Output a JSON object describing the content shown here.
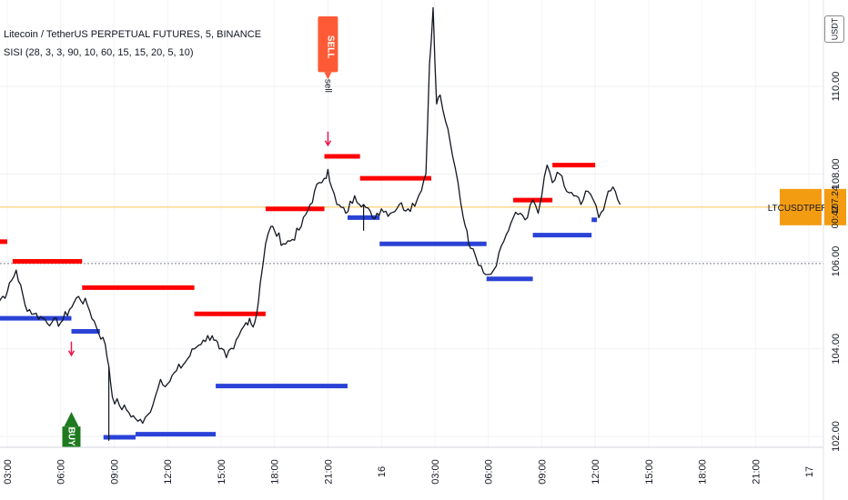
{
  "legend": {
    "symbol_title": "Litecoin / TetherUS PERPETUAL FUTURES, 5, BINANCE",
    "indicator": "SISI (28, 3, 3, 90, 10, 60, 15, 15, 20, 5, 10)"
  },
  "unit_button": "USDT",
  "chart_data": {
    "type": "candlestick",
    "symbol_badge": "LTCUSDTPERP",
    "last_price": "107.24",
    "countdown": "00:42",
    "colors": {
      "price": "#131722",
      "sell_level": "#ff0000",
      "buy_level": "#2a42d6",
      "last_price_line": "#ffcc66",
      "badge": "#f39c12",
      "sell_marker": "#ff5a36",
      "buy_marker": "#1f7a1f",
      "arrow": "#e8174e"
    },
    "y_axis": {
      "range": [
        101.8,
        112.0
      ],
      "ticks": [
        "102.00",
        "104.00",
        "106.00",
        "108.00",
        "110.00"
      ]
    },
    "x_axis": {
      "ticks": [
        "03:00",
        "06:00",
        "09:00",
        "12:00",
        "15:00",
        "18:00",
        "21:00",
        "16",
        "03:00",
        "06:00",
        "09:00",
        "12:00",
        "15:00",
        "18:00",
        "21:00",
        "17"
      ],
      "hours_from_first_tick": [
        0,
        3,
        6,
        9,
        12,
        15,
        18,
        21,
        24,
        27,
        30,
        33,
        36,
        39,
        42,
        45
      ]
    },
    "reference_lines": [
      {
        "y": 107.24,
        "style": "solid",
        "color": "#ffcc66"
      },
      {
        "y": 105.95,
        "style": "dotted",
        "color": "#9598a1"
      }
    ],
    "price_path": {
      "hours": [
        -1,
        0,
        0.5,
        1,
        1.5,
        2,
        2.5,
        3,
        3.5,
        4,
        4.5,
        5,
        5.5,
        5.7,
        5.9,
        6.3,
        6.7,
        7.2,
        7.6,
        7.9,
        8.3,
        8.6,
        9,
        9.5,
        10,
        10.5,
        11,
        11.5,
        11.7,
        11.9,
        12.3,
        12.7,
        13,
        13.4,
        13.6,
        13.8,
        14,
        14.2,
        14.5,
        14.8,
        15,
        15.5,
        16,
        16.5,
        17,
        17.5,
        17.8,
        18,
        18.2,
        18.5,
        19,
        19.5,
        20,
        20.5,
        21,
        21.5,
        22,
        22.5,
        23,
        23.5,
        23.7,
        23.9,
        24,
        24.1,
        24.3,
        24.6,
        25,
        25.3,
        25.6,
        25.8,
        26,
        26.3,
        26.6,
        27,
        27.3,
        27.6,
        28,
        28.4,
        28.8,
        29.2,
        29.5,
        29.8,
        30,
        30.3,
        30.6,
        31,
        31.4,
        31.8,
        32.2,
        32.6,
        32.9,
        33.2,
        33.6,
        34,
        34.4
      ],
      "values": [
        104.9,
        105.3,
        105.8,
        105.0,
        104.8,
        104.7,
        104.6,
        104.6,
        104.9,
        105.2,
        105.0,
        104.5,
        104.1,
        103.6,
        102.9,
        102.7,
        102.6,
        102.4,
        102.3,
        102.5,
        102.9,
        103.3,
        103.2,
        103.5,
        103.7,
        104.0,
        104.2,
        104.3,
        104.2,
        104.0,
        103.8,
        104.0,
        104.3,
        104.6,
        104.7,
        104.5,
        104.8,
        105.5,
        106.4,
        106.8,
        106.7,
        106.4,
        106.5,
        106.8,
        107.3,
        107.8,
        107.9,
        108.1,
        107.7,
        107.3,
        107.1,
        107.5,
        107.3,
        107.0,
        107.2,
        107.1,
        107.3,
        107.2,
        107.4,
        108.0,
        110.5,
        111.8,
        110.6,
        109.6,
        109.8,
        109.2,
        108.4,
        107.8,
        107.0,
        106.7,
        106.3,
        106.1,
        105.9,
        105.7,
        105.8,
        106.2,
        106.6,
        107.0,
        107.1,
        107.0,
        107.4,
        107.1,
        107.5,
        108.2,
        107.8,
        108.0,
        107.6,
        107.5,
        107.3,
        107.6,
        107.4,
        107.0,
        107.4,
        107.7,
        107.3
      ],
      "low_wicks": [
        {
          "hour": 5.7,
          "low": 101.9
        },
        {
          "hour": 20.0,
          "low": 106.7
        }
      ]
    },
    "sell_levels": [
      {
        "from": -1,
        "to": 0,
        "y": 106.45
      },
      {
        "from": 0.3,
        "to": 4.2,
        "y": 106.0
      },
      {
        "from": 4.2,
        "to": 10.5,
        "y": 105.4
      },
      {
        "from": 10.5,
        "to": 14.5,
        "y": 104.8
      },
      {
        "from": 14.5,
        "to": 17.8,
        "y": 107.2
      },
      {
        "from": 17.8,
        "to": 19.8,
        "y": 108.4
      },
      {
        "from": 19.8,
        "to": 23.8,
        "y": 107.9
      },
      {
        "from": 28.4,
        "to": 30.6,
        "y": 107.4
      },
      {
        "from": 30.6,
        "to": 33.0,
        "y": 108.2
      }
    ],
    "buy_levels": [
      {
        "from": -1,
        "to": 3.6,
        "y": 104.7
      },
      {
        "from": 3.6,
        "to": 5.2,
        "y": 104.4
      },
      {
        "from": 5.4,
        "to": 7.2,
        "y": 101.98
      },
      {
        "from": 7.2,
        "to": 11.7,
        "y": 102.05
      },
      {
        "from": 11.7,
        "to": 19.1,
        "y": 103.15
      },
      {
        "from": 19.1,
        "to": 20.9,
        "y": 107.0
      },
      {
        "from": 20.9,
        "to": 26.9,
        "y": 106.4
      },
      {
        "from": 26.9,
        "to": 29.5,
        "y": 105.6
      },
      {
        "from": 29.5,
        "to": 32.8,
        "y": 106.6
      },
      {
        "from": 32.8,
        "to": 33.1,
        "y": 106.95
      }
    ],
    "signals": [
      {
        "type": "sell",
        "label": "SELL",
        "caption": "sell",
        "hour": 18.0,
        "y_from": 111.6,
        "y_to": 110.2
      },
      {
        "type": "buy",
        "label": "BUY",
        "hour": 3.6,
        "y_from": 102.35,
        "y_to": 101.7
      }
    ],
    "arrows": [
      {
        "direction": "down",
        "hour": 18.0,
        "y": 108.8
      },
      {
        "direction": "down",
        "hour": 3.6,
        "y": 104.0
      }
    ]
  }
}
